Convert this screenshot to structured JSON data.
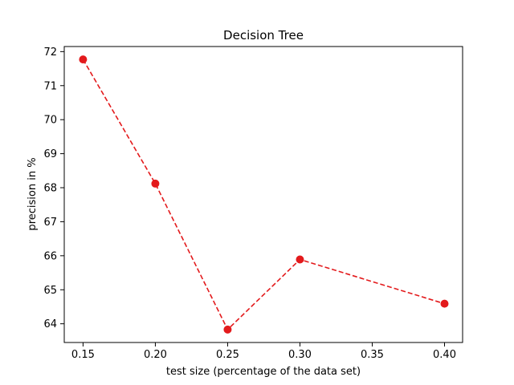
{
  "chart_data": {
    "type": "line",
    "title": "Decision Tree",
    "xlabel": "test size (percentage of the data set)",
    "ylabel": "precision in %",
    "x": [
      0.15,
      0.2,
      0.25,
      0.3,
      0.4
    ],
    "series": [
      {
        "values": [
          71.77,
          68.12,
          63.83,
          65.89,
          64.59
        ],
        "color": "#e31a1c",
        "line_style": "dashed",
        "marker": "circle"
      }
    ],
    "xlim": [
      0.137,
      0.4125
    ],
    "ylim": [
      63.45,
      72.15
    ],
    "x_ticks": [
      0.15,
      0.2,
      0.25,
      0.3,
      0.35,
      0.4
    ],
    "x_tick_labels": [
      "0.15",
      "0.20",
      "0.25",
      "0.30",
      "0.35",
      "0.40"
    ],
    "y_ticks": [
      64,
      65,
      66,
      67,
      68,
      69,
      70,
      71,
      72
    ],
    "y_tick_labels": [
      "64",
      "65",
      "66",
      "67",
      "68",
      "69",
      "70",
      "71",
      "72"
    ],
    "grid": false,
    "legend": "none"
  }
}
